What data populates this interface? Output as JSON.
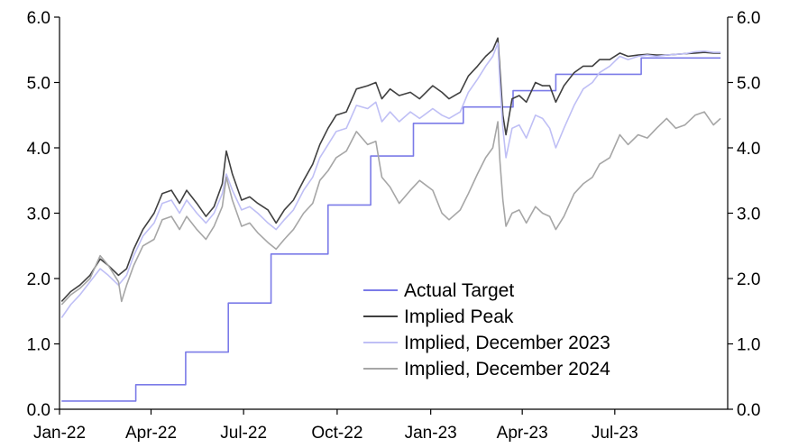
{
  "chart_data": {
    "type": "line",
    "title": "",
    "xlabel": "",
    "ylabel": "",
    "x_range": [
      "2022-01-01",
      "2023-10-20"
    ],
    "x_ticks": [
      {
        "date": "2022-01-01",
        "label": "Jan-22"
      },
      {
        "date": "2022-04-01",
        "label": "Apr-22"
      },
      {
        "date": "2022-07-01",
        "label": "Jul-22"
      },
      {
        "date": "2022-10-01",
        "label": "Oct-22"
      },
      {
        "date": "2023-01-01",
        "label": "Jan-23"
      },
      {
        "date": "2023-04-01",
        "label": "Apr-23"
      },
      {
        "date": "2023-07-01",
        "label": "Jul-23"
      }
    ],
    "ylim": [
      0,
      6
    ],
    "y_ticks": [
      "0.0",
      "1.0",
      "2.0",
      "3.0",
      "4.0",
      "5.0",
      "6.0"
    ],
    "legend_position": "bottom-center",
    "series": [
      {
        "name": "Actual Target",
        "color": "#7b7be8",
        "style": "step",
        "points": [
          [
            "2022-01-03",
            0.125
          ],
          [
            "2022-03-17",
            0.125
          ],
          [
            "2022-03-17",
            0.375
          ],
          [
            "2022-05-05",
            0.375
          ],
          [
            "2022-05-05",
            0.875
          ],
          [
            "2022-06-16",
            0.875
          ],
          [
            "2022-06-16",
            1.625
          ],
          [
            "2022-07-28",
            1.625
          ],
          [
            "2022-07-28",
            2.375
          ],
          [
            "2022-09-22",
            2.375
          ],
          [
            "2022-09-22",
            3.125
          ],
          [
            "2022-11-03",
            3.125
          ],
          [
            "2022-11-03",
            3.875
          ],
          [
            "2022-12-15",
            3.875
          ],
          [
            "2022-12-15",
            4.375
          ],
          [
            "2023-02-02",
            4.375
          ],
          [
            "2023-02-02",
            4.625
          ],
          [
            "2023-03-23",
            4.625
          ],
          [
            "2023-03-23",
            4.875
          ],
          [
            "2023-05-04",
            4.875
          ],
          [
            "2023-05-04",
            5.125
          ],
          [
            "2023-07-27",
            5.125
          ],
          [
            "2023-07-27",
            5.375
          ],
          [
            "2023-10-13",
            5.375
          ]
        ]
      },
      {
        "name": "Implied Peak",
        "color": "#404040",
        "style": "line",
        "points": [
          [
            "2022-01-03",
            1.65
          ],
          [
            "2022-01-12",
            1.8
          ],
          [
            "2022-01-21",
            1.9
          ],
          [
            "2022-01-31",
            2.05
          ],
          [
            "2022-02-10",
            2.3
          ],
          [
            "2022-02-18",
            2.2
          ],
          [
            "2022-02-28",
            2.05
          ],
          [
            "2022-03-08",
            2.15
          ],
          [
            "2022-03-15",
            2.45
          ],
          [
            "2022-03-24",
            2.75
          ],
          [
            "2022-04-04",
            3.0
          ],
          [
            "2022-04-12",
            3.3
          ],
          [
            "2022-04-21",
            3.35
          ],
          [
            "2022-04-29",
            3.15
          ],
          [
            "2022-05-06",
            3.35
          ],
          [
            "2022-05-16",
            3.15
          ],
          [
            "2022-05-25",
            2.95
          ],
          [
            "2022-06-02",
            3.1
          ],
          [
            "2022-06-10",
            3.45
          ],
          [
            "2022-06-14",
            3.95
          ],
          [
            "2022-06-20",
            3.6
          ],
          [
            "2022-06-29",
            3.2
          ],
          [
            "2022-07-07",
            3.25
          ],
          [
            "2022-07-15",
            3.15
          ],
          [
            "2022-07-25",
            3.05
          ],
          [
            "2022-08-02",
            2.85
          ],
          [
            "2022-08-10",
            3.05
          ],
          [
            "2022-08-19",
            3.2
          ],
          [
            "2022-08-29",
            3.5
          ],
          [
            "2022-09-07",
            3.75
          ],
          [
            "2022-09-14",
            4.05
          ],
          [
            "2022-09-22",
            4.3
          ],
          [
            "2022-09-30",
            4.5
          ],
          [
            "2022-10-10",
            4.55
          ],
          [
            "2022-10-20",
            4.9
          ],
          [
            "2022-10-31",
            4.95
          ],
          [
            "2022-11-08",
            5.0
          ],
          [
            "2022-11-14",
            4.75
          ],
          [
            "2022-11-22",
            4.9
          ],
          [
            "2022-12-01",
            4.8
          ],
          [
            "2022-12-12",
            4.85
          ],
          [
            "2022-12-21",
            4.75
          ],
          [
            "2023-01-03",
            4.95
          ],
          [
            "2023-01-12",
            4.85
          ],
          [
            "2023-01-19",
            4.75
          ],
          [
            "2023-01-30",
            4.85
          ],
          [
            "2023-02-07",
            5.1
          ],
          [
            "2023-02-16",
            5.25
          ],
          [
            "2023-02-24",
            5.4
          ],
          [
            "2023-03-03",
            5.5
          ],
          [
            "2023-03-08",
            5.68
          ],
          [
            "2023-03-10",
            5.2
          ],
          [
            "2023-03-13",
            4.5
          ],
          [
            "2023-03-16",
            4.2
          ],
          [
            "2023-03-22",
            4.75
          ],
          [
            "2023-03-29",
            4.8
          ],
          [
            "2023-04-05",
            4.7
          ],
          [
            "2023-04-14",
            5.0
          ],
          [
            "2023-04-21",
            4.95
          ],
          [
            "2023-04-28",
            4.95
          ],
          [
            "2023-05-04",
            4.7
          ],
          [
            "2023-05-12",
            4.95
          ],
          [
            "2023-05-22",
            5.15
          ],
          [
            "2023-05-31",
            5.25
          ],
          [
            "2023-06-09",
            5.25
          ],
          [
            "2023-06-16",
            5.35
          ],
          [
            "2023-06-26",
            5.35
          ],
          [
            "2023-07-06",
            5.45
          ],
          [
            "2023-07-14",
            5.4
          ],
          [
            "2023-07-24",
            5.42
          ],
          [
            "2023-08-02",
            5.43
          ],
          [
            "2023-08-11",
            5.42
          ],
          [
            "2023-08-21",
            5.42
          ],
          [
            "2023-08-30",
            5.43
          ],
          [
            "2023-09-08",
            5.44
          ],
          [
            "2023-09-18",
            5.45
          ],
          [
            "2023-09-27",
            5.46
          ],
          [
            "2023-10-06",
            5.45
          ],
          [
            "2023-10-13",
            5.45
          ]
        ]
      },
      {
        "name": "Implied, December 2023",
        "color": "#bfbff5",
        "style": "line",
        "points": [
          [
            "2022-01-03",
            1.4
          ],
          [
            "2022-01-12",
            1.6
          ],
          [
            "2022-01-21",
            1.75
          ],
          [
            "2022-01-31",
            1.95
          ],
          [
            "2022-02-10",
            2.15
          ],
          [
            "2022-02-18",
            2.05
          ],
          [
            "2022-02-28",
            1.9
          ],
          [
            "2022-03-08",
            2.05
          ],
          [
            "2022-03-15",
            2.35
          ],
          [
            "2022-03-24",
            2.65
          ],
          [
            "2022-04-04",
            2.85
          ],
          [
            "2022-04-12",
            3.15
          ],
          [
            "2022-04-21",
            3.2
          ],
          [
            "2022-04-29",
            3.0
          ],
          [
            "2022-05-06",
            3.2
          ],
          [
            "2022-05-16",
            3.0
          ],
          [
            "2022-05-25",
            2.85
          ],
          [
            "2022-06-02",
            3.0
          ],
          [
            "2022-06-10",
            3.3
          ],
          [
            "2022-06-14",
            3.6
          ],
          [
            "2022-06-20",
            3.35
          ],
          [
            "2022-06-29",
            3.05
          ],
          [
            "2022-07-07",
            3.1
          ],
          [
            "2022-07-15",
            3.0
          ],
          [
            "2022-07-25",
            2.85
          ],
          [
            "2022-08-02",
            2.75
          ],
          [
            "2022-08-10",
            2.9
          ],
          [
            "2022-08-19",
            3.05
          ],
          [
            "2022-08-29",
            3.35
          ],
          [
            "2022-09-07",
            3.55
          ],
          [
            "2022-09-14",
            3.85
          ],
          [
            "2022-09-22",
            4.05
          ],
          [
            "2022-09-30",
            4.25
          ],
          [
            "2022-10-10",
            4.3
          ],
          [
            "2022-10-20",
            4.65
          ],
          [
            "2022-10-31",
            4.6
          ],
          [
            "2022-11-08",
            4.7
          ],
          [
            "2022-11-14",
            4.4
          ],
          [
            "2022-11-22",
            4.55
          ],
          [
            "2022-12-01",
            4.4
          ],
          [
            "2022-12-12",
            4.55
          ],
          [
            "2022-12-21",
            4.45
          ],
          [
            "2023-01-03",
            4.6
          ],
          [
            "2023-01-12",
            4.5
          ],
          [
            "2023-01-19",
            4.45
          ],
          [
            "2023-01-30",
            4.55
          ],
          [
            "2023-02-07",
            4.85
          ],
          [
            "2023-02-16",
            5.05
          ],
          [
            "2023-02-24",
            5.25
          ],
          [
            "2023-03-03",
            5.4
          ],
          [
            "2023-03-08",
            5.6
          ],
          [
            "2023-03-10",
            5.0
          ],
          [
            "2023-03-13",
            4.3
          ],
          [
            "2023-03-16",
            3.85
          ],
          [
            "2023-03-22",
            4.3
          ],
          [
            "2023-03-29",
            4.35
          ],
          [
            "2023-04-05",
            4.15
          ],
          [
            "2023-04-14",
            4.5
          ],
          [
            "2023-04-21",
            4.45
          ],
          [
            "2023-04-28",
            4.3
          ],
          [
            "2023-05-04",
            4.0
          ],
          [
            "2023-05-12",
            4.3
          ],
          [
            "2023-05-22",
            4.65
          ],
          [
            "2023-05-31",
            4.9
          ],
          [
            "2023-06-09",
            5.0
          ],
          [
            "2023-06-16",
            5.15
          ],
          [
            "2023-06-26",
            5.25
          ],
          [
            "2023-07-06",
            5.4
          ],
          [
            "2023-07-14",
            5.35
          ],
          [
            "2023-07-24",
            5.4
          ],
          [
            "2023-08-02",
            5.42
          ],
          [
            "2023-08-11",
            5.4
          ],
          [
            "2023-08-21",
            5.42
          ],
          [
            "2023-08-30",
            5.43
          ],
          [
            "2023-09-08",
            5.44
          ],
          [
            "2023-09-18",
            5.47
          ],
          [
            "2023-09-27",
            5.48
          ],
          [
            "2023-10-06",
            5.46
          ],
          [
            "2023-10-13",
            5.46
          ]
        ]
      },
      {
        "name": "Implied, December 2024",
        "color": "#a6a6a6",
        "style": "line",
        "points": [
          [
            "2022-01-03",
            1.6
          ],
          [
            "2022-01-12",
            1.75
          ],
          [
            "2022-01-21",
            1.85
          ],
          [
            "2022-01-31",
            2.0
          ],
          [
            "2022-02-10",
            2.35
          ],
          [
            "2022-02-18",
            2.2
          ],
          [
            "2022-02-28",
            1.95
          ],
          [
            "2022-03-03",
            1.65
          ],
          [
            "2022-03-08",
            1.9
          ],
          [
            "2022-03-15",
            2.2
          ],
          [
            "2022-03-24",
            2.5
          ],
          [
            "2022-04-04",
            2.6
          ],
          [
            "2022-04-12",
            2.9
          ],
          [
            "2022-04-21",
            2.95
          ],
          [
            "2022-04-29",
            2.75
          ],
          [
            "2022-05-06",
            2.95
          ],
          [
            "2022-05-16",
            2.75
          ],
          [
            "2022-05-25",
            2.6
          ],
          [
            "2022-06-02",
            2.8
          ],
          [
            "2022-06-10",
            3.1
          ],
          [
            "2022-06-14",
            3.55
          ],
          [
            "2022-06-20",
            3.2
          ],
          [
            "2022-06-29",
            2.8
          ],
          [
            "2022-07-07",
            2.85
          ],
          [
            "2022-07-15",
            2.7
          ],
          [
            "2022-07-25",
            2.55
          ],
          [
            "2022-08-02",
            2.45
          ],
          [
            "2022-08-10",
            2.6
          ],
          [
            "2022-08-19",
            2.75
          ],
          [
            "2022-08-29",
            3.0
          ],
          [
            "2022-09-07",
            3.15
          ],
          [
            "2022-09-14",
            3.5
          ],
          [
            "2022-09-22",
            3.65
          ],
          [
            "2022-09-30",
            3.85
          ],
          [
            "2022-10-10",
            3.95
          ],
          [
            "2022-10-20",
            4.25
          ],
          [
            "2022-10-31",
            4.05
          ],
          [
            "2022-11-08",
            4.1
          ],
          [
            "2022-11-14",
            3.55
          ],
          [
            "2022-11-22",
            3.4
          ],
          [
            "2022-12-01",
            3.15
          ],
          [
            "2022-12-12",
            3.35
          ],
          [
            "2022-12-21",
            3.5
          ],
          [
            "2023-01-03",
            3.35
          ],
          [
            "2023-01-12",
            3.0
          ],
          [
            "2023-01-19",
            2.9
          ],
          [
            "2023-01-30",
            3.05
          ],
          [
            "2023-02-07",
            3.3
          ],
          [
            "2023-02-16",
            3.6
          ],
          [
            "2023-02-24",
            3.85
          ],
          [
            "2023-03-03",
            4.0
          ],
          [
            "2023-03-08",
            4.4
          ],
          [
            "2023-03-10",
            3.8
          ],
          [
            "2023-03-13",
            3.2
          ],
          [
            "2023-03-16",
            2.8
          ],
          [
            "2023-03-22",
            3.0
          ],
          [
            "2023-03-29",
            3.05
          ],
          [
            "2023-04-05",
            2.85
          ],
          [
            "2023-04-14",
            3.1
          ],
          [
            "2023-04-21",
            3.0
          ],
          [
            "2023-04-28",
            2.95
          ],
          [
            "2023-05-04",
            2.75
          ],
          [
            "2023-05-12",
            2.95
          ],
          [
            "2023-05-22",
            3.3
          ],
          [
            "2023-05-31",
            3.45
          ],
          [
            "2023-06-09",
            3.55
          ],
          [
            "2023-06-16",
            3.75
          ],
          [
            "2023-06-26",
            3.85
          ],
          [
            "2023-07-06",
            4.2
          ],
          [
            "2023-07-14",
            4.05
          ],
          [
            "2023-07-24",
            4.2
          ],
          [
            "2023-08-02",
            4.15
          ],
          [
            "2023-08-11",
            4.3
          ],
          [
            "2023-08-21",
            4.45
          ],
          [
            "2023-08-30",
            4.3
          ],
          [
            "2023-09-08",
            4.35
          ],
          [
            "2023-09-18",
            4.5
          ],
          [
            "2023-09-27",
            4.55
          ],
          [
            "2023-10-06",
            4.35
          ],
          [
            "2023-10-13",
            4.45
          ]
        ]
      }
    ]
  }
}
